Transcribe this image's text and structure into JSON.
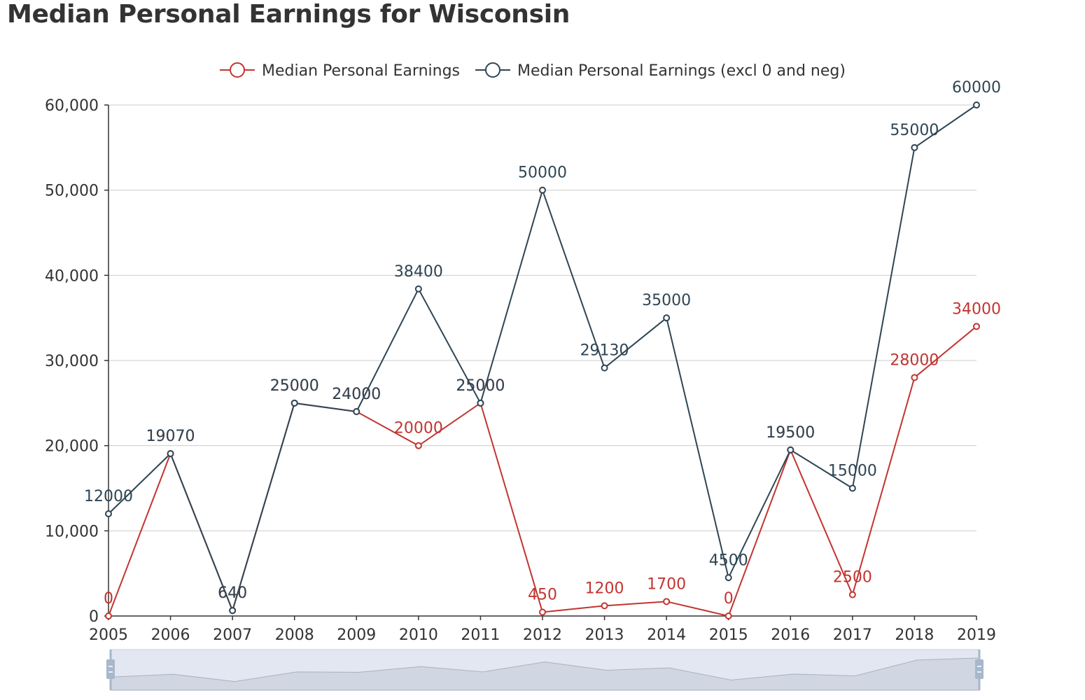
{
  "page": {
    "title": "Median Personal Earnings for Wisconsin"
  },
  "colors": {
    "series_1": "#c23531",
    "series_2": "#2f4554",
    "grid": "#cccccc",
    "axis": "#333333",
    "zoom_fill": "#dde3ee",
    "zoom_border": "#b7c1d3",
    "zoom_handle": "#a7b7cc",
    "zoom_area": "#c5ccd8"
  },
  "chart_data": {
    "type": "line",
    "title": "Median Personal Earnings for Wisconsin",
    "x": [
      "2005",
      "2006",
      "2007",
      "2008",
      "2009",
      "2010",
      "2011",
      "2012",
      "2013",
      "2014",
      "2015",
      "2016",
      "2017",
      "2018",
      "2019"
    ],
    "y_ticks": [
      "0",
      "10,000",
      "20,000",
      "30,000",
      "40,000",
      "50,000",
      "60,000"
    ],
    "ylim": [
      0,
      60000
    ],
    "grid": true,
    "legend_position": "top-center",
    "series": [
      {
        "name": "Median Personal Earnings",
        "values": [
          0,
          19070,
          640,
          25000,
          24000,
          20000,
          25000,
          450,
          1200,
          1700,
          0,
          19500,
          2500,
          28000,
          34000
        ],
        "labels": [
          "0",
          "19070",
          "640",
          "25000",
          "24000",
          "20000",
          "25000",
          "450",
          "1200",
          "1700",
          "0",
          "19500",
          "2500",
          "28000",
          "34000"
        ]
      },
      {
        "name": "Median Personal Earnings (excl 0 and neg)",
        "values": [
          12000,
          19070,
          640,
          25000,
          24000,
          38400,
          25000,
          50000,
          29130,
          35000,
          4500,
          19500,
          15000,
          55000,
          60000
        ],
        "labels": [
          "12000",
          "19070",
          "640",
          "25000",
          "24000",
          "38400",
          "25000",
          "50000",
          "29130",
          "35000",
          "4500",
          "19500",
          "15000",
          "55000",
          "60000"
        ]
      }
    ],
    "data_zoom": {
      "range_start": 0,
      "range_end": 1
    }
  }
}
